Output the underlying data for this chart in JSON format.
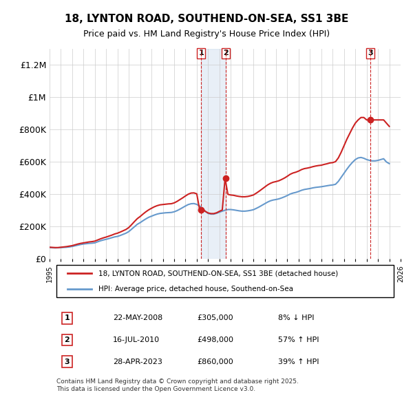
{
  "title": "18, LYNTON ROAD, SOUTHEND-ON-SEA, SS1 3BE",
  "subtitle": "Price paid vs. HM Land Registry's House Price Index (HPI)",
  "ylabel": "",
  "xlabel": "",
  "ylim": [
    0,
    1300000
  ],
  "yticks": [
    0,
    200000,
    400000,
    600000,
    800000,
    1000000,
    1200000
  ],
  "ytick_labels": [
    "£0",
    "£200K",
    "£400K",
    "£600K",
    "£800K",
    "£1M",
    "£1.2M"
  ],
  "hpi_color": "#6699cc",
  "price_color": "#cc2222",
  "transactions": [
    {
      "num": 1,
      "date": "22-MAY-2008",
      "price": 305000,
      "pct": "8%",
      "dir": "↓",
      "year": 2008.38
    },
    {
      "num": 2,
      "date": "16-JUL-2010",
      "price": 498000,
      "pct": "57%",
      "dir": "↑",
      "year": 2010.54
    },
    {
      "num": 3,
      "date": "28-APR-2023",
      "price": 860000,
      "pct": "39%",
      "dir": "↑",
      "year": 2023.32
    }
  ],
  "legend_red": "18, LYNTON ROAD, SOUTHEND-ON-SEA, SS1 3BE (detached house)",
  "legend_blue": "HPI: Average price, detached house, Southend-on-Sea",
  "footer": "Contains HM Land Registry data © Crown copyright and database right 2025.\nThis data is licensed under the Open Government Licence v3.0.",
  "hpi_data": {
    "years": [
      1995.0,
      1995.25,
      1995.5,
      1995.75,
      1996.0,
      1996.25,
      1996.5,
      1996.75,
      1997.0,
      1997.25,
      1997.5,
      1997.75,
      1998.0,
      1998.25,
      1998.5,
      1998.75,
      1999.0,
      1999.25,
      1999.5,
      1999.75,
      2000.0,
      2000.25,
      2000.5,
      2000.75,
      2001.0,
      2001.25,
      2001.5,
      2001.75,
      2002.0,
      2002.25,
      2002.5,
      2002.75,
      2003.0,
      2003.25,
      2003.5,
      2003.75,
      2004.0,
      2004.25,
      2004.5,
      2004.75,
      2005.0,
      2005.25,
      2005.5,
      2005.75,
      2006.0,
      2006.25,
      2006.5,
      2006.75,
      2007.0,
      2007.25,
      2007.5,
      2007.75,
      2008.0,
      2008.25,
      2008.5,
      2008.75,
      2009.0,
      2009.25,
      2009.5,
      2009.75,
      2010.0,
      2010.25,
      2010.5,
      2010.75,
      2011.0,
      2011.25,
      2011.5,
      2011.75,
      2012.0,
      2012.25,
      2012.5,
      2012.75,
      2013.0,
      2013.25,
      2013.5,
      2013.75,
      2014.0,
      2014.25,
      2014.5,
      2014.75,
      2015.0,
      2015.25,
      2015.5,
      2015.75,
      2016.0,
      2016.25,
      2016.5,
      2016.75,
      2017.0,
      2017.25,
      2017.5,
      2017.75,
      2018.0,
      2018.25,
      2018.5,
      2018.75,
      2019.0,
      2019.25,
      2019.5,
      2019.75,
      2020.0,
      2020.25,
      2020.5,
      2020.75,
      2021.0,
      2021.25,
      2021.5,
      2021.75,
      2022.0,
      2022.25,
      2022.5,
      2022.75,
      2023.0,
      2023.25,
      2023.5,
      2023.75,
      2024.0,
      2024.25,
      2024.5,
      2024.75,
      2025.0
    ],
    "values": [
      72000,
      70000,
      69000,
      70000,
      71000,
      72000,
      73000,
      75000,
      78000,
      82000,
      86000,
      90000,
      93000,
      95000,
      97000,
      98000,
      100000,
      107000,
      113000,
      118000,
      122000,
      127000,
      132000,
      137000,
      140000,
      146000,
      153000,
      160000,
      170000,
      185000,
      200000,
      215000,
      225000,
      237000,
      248000,
      258000,
      265000,
      272000,
      278000,
      282000,
      284000,
      286000,
      287000,
      288000,
      292000,
      299000,
      308000,
      318000,
      328000,
      337000,
      342000,
      343000,
      338000,
      328000,
      312000,
      295000,
      282000,
      278000,
      278000,
      283000,
      290000,
      296000,
      302000,
      306000,
      306000,
      304000,
      301000,
      298000,
      296000,
      296000,
      298000,
      301000,
      305000,
      313000,
      322000,
      332000,
      342000,
      352000,
      360000,
      365000,
      368000,
      372000,
      378000,
      385000,
      393000,
      402000,
      408000,
      412000,
      418000,
      425000,
      430000,
      433000,
      436000,
      440000,
      443000,
      445000,
      447000,
      450000,
      453000,
      456000,
      458000,
      462000,
      480000,
      505000,
      530000,
      555000,
      578000,
      598000,
      615000,
      625000,
      628000,
      623000,
      615000,
      610000,
      607000,
      607000,
      610000,
      615000,
      620000,
      600000,
      590000
    ]
  },
  "price_data": {
    "years": [
      1995.0,
      1995.25,
      1995.5,
      1995.75,
      1996.0,
      1996.25,
      1996.5,
      1996.75,
      1997.0,
      1997.25,
      1997.5,
      1997.75,
      1998.0,
      1998.25,
      1998.5,
      1998.75,
      1999.0,
      1999.25,
      1999.5,
      1999.75,
      2000.0,
      2000.25,
      2000.5,
      2000.75,
      2001.0,
      2001.25,
      2001.5,
      2001.75,
      2002.0,
      2002.25,
      2002.5,
      2002.75,
      2003.0,
      2003.25,
      2003.5,
      2003.75,
      2004.0,
      2004.25,
      2004.5,
      2004.75,
      2005.0,
      2005.25,
      2005.5,
      2005.75,
      2006.0,
      2006.25,
      2006.5,
      2006.75,
      2007.0,
      2007.25,
      2007.5,
      2007.75,
      2008.0,
      2008.25,
      2008.5,
      2008.75,
      2009.0,
      2009.25,
      2009.5,
      2009.75,
      2010.0,
      2010.25,
      2010.5,
      2010.75,
      2011.0,
      2011.25,
      2011.5,
      2011.75,
      2012.0,
      2012.25,
      2012.5,
      2012.75,
      2013.0,
      2013.25,
      2013.5,
      2013.75,
      2014.0,
      2014.25,
      2014.5,
      2014.75,
      2015.0,
      2015.25,
      2015.5,
      2015.75,
      2016.0,
      2016.25,
      2016.5,
      2016.75,
      2017.0,
      2017.25,
      2017.5,
      2017.75,
      2018.0,
      2018.25,
      2018.5,
      2018.75,
      2019.0,
      2019.25,
      2019.5,
      2019.75,
      2020.0,
      2020.25,
      2020.5,
      2020.75,
      2021.0,
      2021.25,
      2021.5,
      2021.75,
      2022.0,
      2022.25,
      2022.5,
      2022.75,
      2023.0,
      2023.25,
      2023.5,
      2023.75,
      2024.0,
      2024.25,
      2024.5,
      2024.75,
      2025.0
    ],
    "values": [
      73000,
      72000,
      71000,
      71000,
      73000,
      75000,
      77000,
      80000,
      83000,
      88000,
      93000,
      97000,
      100000,
      103000,
      106000,
      108000,
      111000,
      118000,
      125000,
      131000,
      136000,
      142000,
      148000,
      155000,
      160000,
      167000,
      175000,
      183000,
      195000,
      213000,
      232000,
      250000,
      263000,
      278000,
      292000,
      304000,
      314000,
      323000,
      330000,
      335000,
      337000,
      339000,
      341000,
      342000,
      347000,
      356000,
      367000,
      378000,
      390000,
      401000,
      408000,
      409000,
      403000,
      305000,
      312000,
      295000,
      285000,
      281000,
      281000,
      286000,
      295000,
      303000,
      498000,
      400000,
      396000,
      394000,
      390000,
      387000,
      385000,
      385000,
      387000,
      391000,
      396000,
      407000,
      419000,
      432000,
      445000,
      458000,
      468000,
      475000,
      479000,
      484000,
      492000,
      501000,
      512000,
      524000,
      532000,
      537000,
      544000,
      553000,
      559000,
      562000,
      566000,
      571000,
      575000,
      578000,
      580000,
      585000,
      589000,
      594000,
      596000,
      602000,
      625000,
      660000,
      700000,
      740000,
      775000,
      810000,
      840000,
      860000,
      875000,
      875000,
      860000,
      860000,
      860000,
      860000,
      860000,
      860000,
      860000,
      840000,
      820000
    ]
  }
}
